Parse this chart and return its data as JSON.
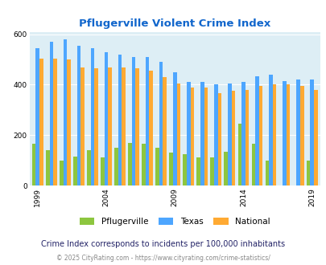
{
  "title": "Pflugerville Violent Crime Index",
  "subtitle": "Crime Index corresponds to incidents per 100,000 inhabitants",
  "footer": "© 2025 CityRating.com - https://www.cityrating.com/crime-statistics/",
  "years": [
    1999,
    2000,
    2001,
    2002,
    2003,
    2004,
    2005,
    2006,
    2007,
    2008,
    2009,
    2010,
    2011,
    2012,
    2013,
    2014,
    2015,
    2016,
    2017,
    2018,
    2019
  ],
  "pflugerville": [
    165,
    140,
    100,
    115,
    140,
    110,
    150,
    170,
    165,
    150,
    130,
    125,
    110,
    110,
    135,
    245,
    165,
    100,
    0,
    0,
    100
  ],
  "texas": [
    545,
    570,
    580,
    555,
    545,
    530,
    520,
    510,
    510,
    490,
    450,
    410,
    410,
    400,
    405,
    410,
    435,
    440,
    415,
    420,
    420
  ],
  "national": [
    505,
    505,
    500,
    470,
    465,
    470,
    470,
    465,
    455,
    430,
    405,
    390,
    390,
    365,
    375,
    380,
    395,
    400,
    400,
    395,
    380
  ],
  "ylim": [
    0,
    610
  ],
  "yticks": [
    0,
    200,
    400,
    600
  ],
  "bar_width": 0.27,
  "color_pflugerville": "#8dc63f",
  "color_texas": "#4da6ff",
  "color_national": "#ffaa33",
  "bg_color": "#ddeef5",
  "title_color": "#1166cc",
  "subtitle_color": "#222266",
  "footer_color": "#888888",
  "legend_labels": [
    "Pflugerville",
    "Texas",
    "National"
  ],
  "xlabel_ticks": [
    1999,
    2004,
    2009,
    2014,
    2019
  ],
  "figsize": [
    4.06,
    3.3
  ],
  "dpi": 100
}
